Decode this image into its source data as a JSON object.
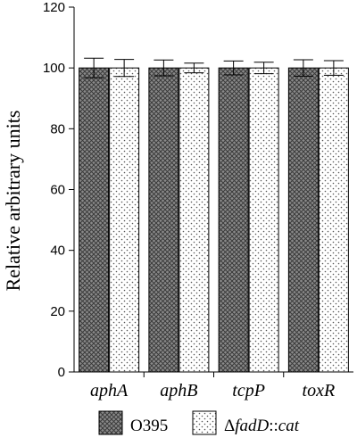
{
  "chart_data": {
    "type": "bar",
    "categories": [
      "aphA",
      "aphB",
      "tcpP",
      "toxR"
    ],
    "series": [
      {
        "name": "O395",
        "values": [
          100,
          100,
          100,
          100
        ],
        "errors": [
          3.2,
          2.6,
          2.3,
          2.7
        ],
        "pattern": "crosshatch-dark"
      },
      {
        "name": "ΔfadD::cat",
        "values": [
          100,
          100,
          100,
          100
        ],
        "errors": [
          2.8,
          1.6,
          1.9,
          2.4
        ],
        "pattern": "dots-light"
      }
    ],
    "ylabel": "Relative arbitrary units",
    "xlabel": "",
    "ylim": [
      0,
      120
    ],
    "yticks": [
      "0",
      "20",
      "40",
      "60",
      "80",
      "100",
      "120"
    ],
    "legend_position": "bottom",
    "legend": {
      "series1_label": "O395",
      "series2_prefix": "Δ",
      "series2_italic": "fadD",
      "series2_mid": "::",
      "series2_italic2": "cat"
    },
    "grid": false
  }
}
